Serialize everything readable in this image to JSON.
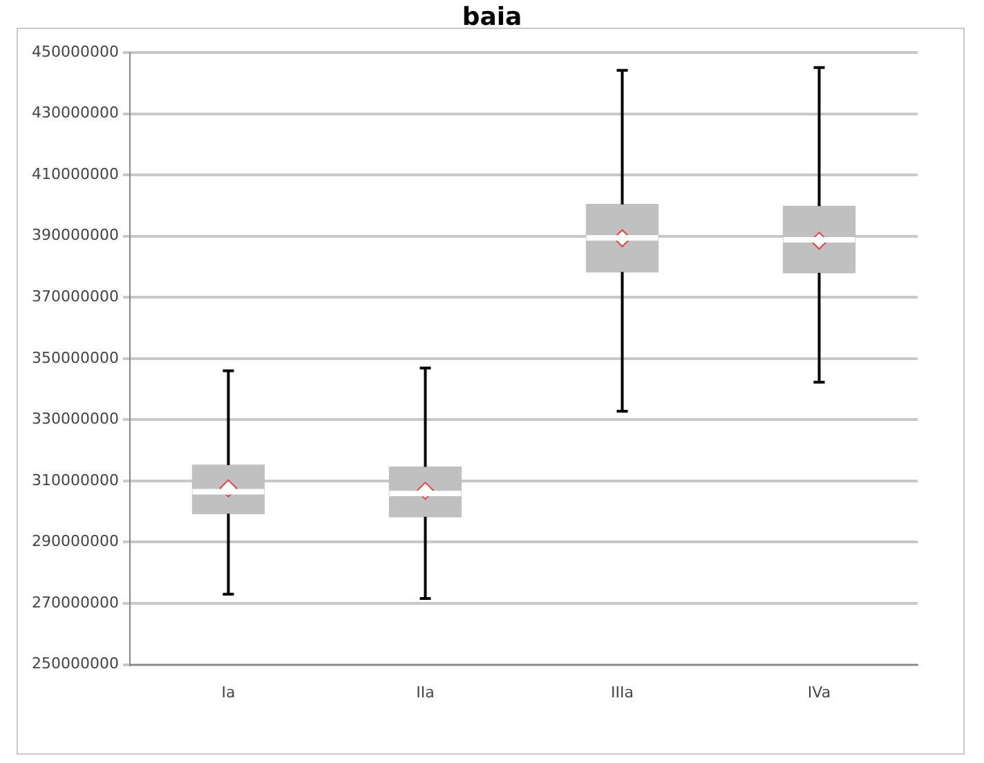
{
  "chart_data": {
    "type": "box",
    "title": "baia",
    "categories": [
      "Ia",
      "IIa",
      "IIIa",
      "IVa"
    ],
    "series": [
      {
        "color": "#c0c0c0",
        "boxes": [
          {
            "low": 273000000,
            "q1": 299300000,
            "median": 306500000,
            "q3": 315200000,
            "high": 346000000,
            "mean": 307600000
          },
          {
            "low": 271600000,
            "q1": 298300000,
            "median": 305900000,
            "q3": 314600000,
            "high": 346900000,
            "mean": 306800000
          },
          {
            "low": 332800000,
            "q1": 378300000,
            "median": 389400000,
            "q3": 400400000,
            "high": 444200000,
            "mean": 389300000
          },
          {
            "low": 342300000,
            "q1": 378000000,
            "median": 388800000,
            "q3": 399800000,
            "high": 445100000,
            "mean": 388500000
          }
        ]
      }
    ],
    "ylim": [
      250000000,
      450000000
    ],
    "yticks": [
      250000000,
      270000000,
      290000000,
      310000000,
      330000000,
      350000000,
      370000000,
      390000000,
      410000000,
      430000000,
      450000000
    ],
    "grid": "y",
    "marker": "diamond",
    "legend": false
  }
}
